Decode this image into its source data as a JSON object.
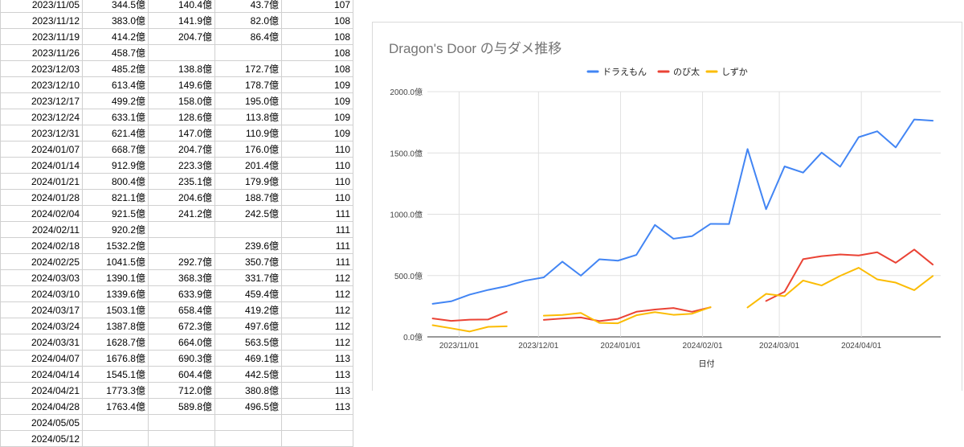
{
  "table": {
    "rows": [
      [
        "2023/11/05",
        "344.5億",
        "140.4億",
        "43.7億",
        "107"
      ],
      [
        "2023/11/12",
        "383.0億",
        "141.9億",
        "82.0億",
        "108"
      ],
      [
        "2023/11/19",
        "414.2億",
        "204.7億",
        "86.4億",
        "108"
      ],
      [
        "2023/11/26",
        "458.7億",
        "",
        "",
        "108"
      ],
      [
        "2023/12/03",
        "485.2億",
        "138.8億",
        "172.7億",
        "108"
      ],
      [
        "2023/12/10",
        "613.4億",
        "149.6億",
        "178.7億",
        "109"
      ],
      [
        "2023/12/17",
        "499.2億",
        "158.0億",
        "195.0億",
        "109"
      ],
      [
        "2023/12/24",
        "633.1億",
        "128.6億",
        "113.8億",
        "109"
      ],
      [
        "2023/12/31",
        "621.4億",
        "147.0億",
        "110.9億",
        "109"
      ],
      [
        "2024/01/07",
        "668.7億",
        "204.7億",
        "176.0億",
        "110"
      ],
      [
        "2024/01/14",
        "912.9億",
        "223.3億",
        "201.4億",
        "110"
      ],
      [
        "2024/01/21",
        "800.4億",
        "235.1億",
        "179.9億",
        "110"
      ],
      [
        "2024/01/28",
        "821.1億",
        "204.6億",
        "188.7億",
        "110"
      ],
      [
        "2024/02/04",
        "921.5億",
        "241.2億",
        "242.5億",
        "111"
      ],
      [
        "2024/02/11",
        "920.2億",
        "",
        "",
        "111"
      ],
      [
        "2024/02/18",
        "1532.2億",
        "",
        "239.6億",
        "111"
      ],
      [
        "2024/02/25",
        "1041.5億",
        "292.7億",
        "350.7億",
        "111"
      ],
      [
        "2024/03/03",
        "1390.1億",
        "368.3億",
        "331.7億",
        "112"
      ],
      [
        "2024/03/10",
        "1339.6億",
        "633.9億",
        "459.4億",
        "112"
      ],
      [
        "2024/03/17",
        "1503.1億",
        "658.4億",
        "419.2億",
        "112"
      ],
      [
        "2024/03/24",
        "1387.8億",
        "672.3億",
        "497.6億",
        "112"
      ],
      [
        "2024/03/31",
        "1628.7億",
        "664.0億",
        "563.5億",
        "112"
      ],
      [
        "2024/04/07",
        "1676.8億",
        "690.3億",
        "469.1億",
        "113"
      ],
      [
        "2024/04/14",
        "1545.1億",
        "604.4億",
        "442.5億",
        "113"
      ],
      [
        "2024/04/21",
        "1773.3億",
        "712.0億",
        "380.8億",
        "113"
      ],
      [
        "2024/04/28",
        "1763.4億",
        "589.8億",
        "496.5億",
        "113"
      ],
      [
        "2024/05/05",
        "",
        "",
        "",
        ""
      ],
      [
        "2024/05/12",
        "",
        "",
        "",
        ""
      ]
    ]
  },
  "chart_data": {
    "type": "line",
    "title": "Dragon's Door の与ダメ推移",
    "xlabel": "日付",
    "ylabel": "",
    "ylim": [
      0,
      2000
    ],
    "yticks": [
      "0.0億",
      "500.0億",
      "1000.0億",
      "1500.0億",
      "2000.0億"
    ],
    "xticks": [
      "2023/11/01",
      "2023/12/01",
      "2024/01/01",
      "2024/02/01",
      "2024/03/01",
      "2024/04/01"
    ],
    "legend_position": "top",
    "grid": true,
    "x": [
      "2023/10/22",
      "2023/10/29",
      "2023/11/05",
      "2023/11/12",
      "2023/11/19",
      "2023/11/26",
      "2023/12/03",
      "2023/12/10",
      "2023/12/17",
      "2023/12/24",
      "2023/12/31",
      "2024/01/07",
      "2024/01/14",
      "2024/01/21",
      "2024/01/28",
      "2024/02/04",
      "2024/02/11",
      "2024/02/18",
      "2024/02/25",
      "2024/03/03",
      "2024/03/10",
      "2024/03/17",
      "2024/03/24",
      "2024/03/31",
      "2024/04/07",
      "2024/04/14",
      "2024/04/21",
      "2024/04/28"
    ],
    "series": [
      {
        "name": "ドラえもん",
        "color": "#4285f4",
        "values": [
          270,
          290,
          344.5,
          383.0,
          414.2,
          458.7,
          485.2,
          613.4,
          499.2,
          633.1,
          621.4,
          668.7,
          912.9,
          800.4,
          821.1,
          921.5,
          920.2,
          1532.2,
          1041.5,
          1390.1,
          1339.6,
          1503.1,
          1387.8,
          1628.7,
          1676.8,
          1545.1,
          1773.3,
          1763.4
        ]
      },
      {
        "name": "のび太",
        "color": "#ea4335",
        "values": [
          150,
          130,
          140.4,
          141.9,
          204.7,
          null,
          138.8,
          149.6,
          158.0,
          128.6,
          147.0,
          204.7,
          223.3,
          235.1,
          204.6,
          241.2,
          null,
          null,
          292.7,
          368.3,
          633.9,
          658.4,
          672.3,
          664.0,
          690.3,
          604.4,
          712.0,
          589.8
        ]
      },
      {
        "name": "しずか",
        "color": "#fbbc04",
        "values": [
          95,
          70,
          43.7,
          82.0,
          86.4,
          null,
          172.7,
          178.7,
          195.0,
          113.8,
          110.9,
          176.0,
          201.4,
          179.9,
          188.7,
          242.5,
          null,
          239.6,
          350.7,
          331.7,
          459.4,
          419.2,
          497.6,
          563.5,
          469.1,
          442.5,
          380.8,
          496.5
        ]
      }
    ]
  }
}
